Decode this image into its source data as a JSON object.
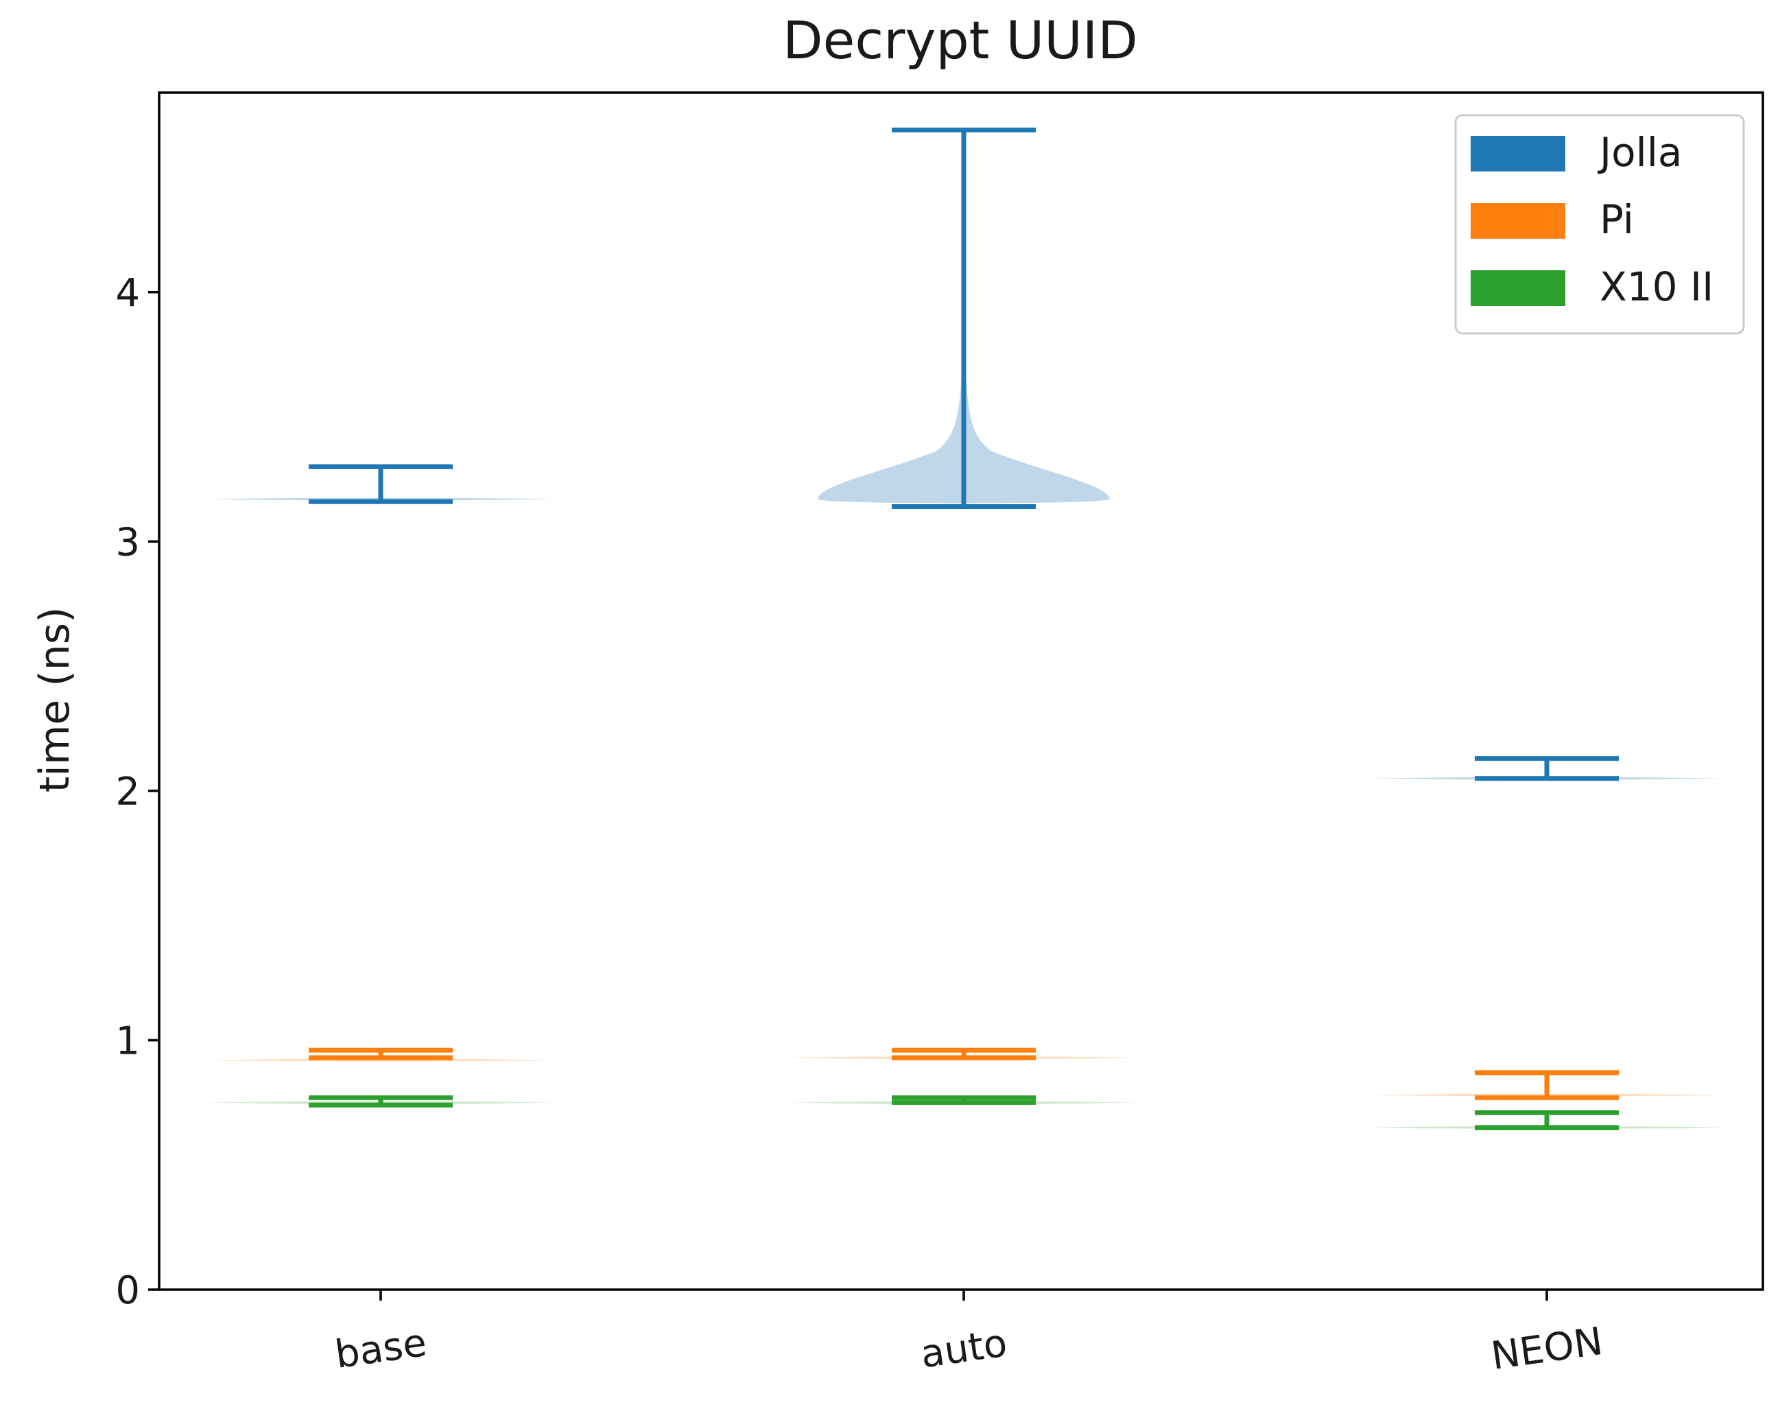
{
  "chart_data": {
    "type": "violin",
    "title": "Decrypt UUID",
    "xlabel": "",
    "ylabel": "time (ns)",
    "categories": [
      "base",
      "auto",
      "NEON"
    ],
    "ylim": [
      0,
      4.8
    ],
    "yticks": [
      0,
      1,
      2,
      3,
      4
    ],
    "grid": false,
    "legend_position": "top-right",
    "series": [
      {
        "name": "Jolla",
        "color": "#1f77b4",
        "fill": "#b9d3e8",
        "violins": [
          {
            "min": 3.16,
            "max": 3.3,
            "body_center": 3.17,
            "body_half_width": 0.6,
            "body_height": 0.03
          },
          {
            "min": 3.14,
            "max": 4.65,
            "body_center": 3.17,
            "body_half_width": 0.5,
            "body_height": 0.6
          },
          {
            "min": 2.05,
            "max": 2.13,
            "body_center": 2.05,
            "body_half_width": 0.6,
            "body_height": 0.03
          }
        ]
      },
      {
        "name": "Pi",
        "color": "#ff7f0e",
        "fill": "#ffd9b8",
        "violins": [
          {
            "min": 0.93,
            "max": 0.96,
            "body_center": 0.92,
            "body_half_width": 0.6,
            "body_height": 0.02
          },
          {
            "min": 0.93,
            "max": 0.96,
            "body_center": 0.93,
            "body_half_width": 0.6,
            "body_height": 0.02
          },
          {
            "min": 0.77,
            "max": 0.87,
            "body_center": 0.78,
            "body_half_width": 0.6,
            "body_height": 0.03
          }
        ]
      },
      {
        "name": "X10 II",
        "color": "#2ca02c",
        "fill": "#c4e4c4",
        "violins": [
          {
            "min": 0.74,
            "max": 0.77,
            "body_center": 0.75,
            "body_half_width": 0.6,
            "body_height": 0.02
          },
          {
            "min": 0.75,
            "max": 0.77,
            "body_center": 0.75,
            "body_half_width": 0.6,
            "body_height": 0.02
          },
          {
            "min": 0.65,
            "max": 0.71,
            "body_center": 0.65,
            "body_half_width": 0.6,
            "body_height": 0.02
          }
        ]
      }
    ]
  }
}
